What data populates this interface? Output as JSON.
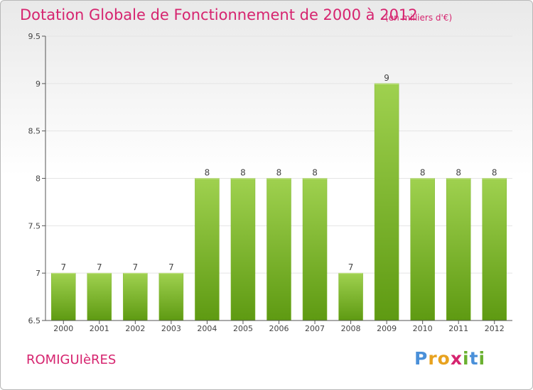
{
  "title": "Dotation Globale de Fonctionnement de 2000 à 2012",
  "subtitle": "(en milliers d'€)",
  "commune": "ROMIGUIèRES",
  "logo": {
    "text": "Proxiti",
    "letters": [
      "P",
      "r",
      "o",
      "x",
      "i",
      "t",
      "i"
    ]
  },
  "colors": {
    "title": "#d6246f",
    "bar_light": "#9fd14f",
    "bar_dark": "#5e9a12",
    "axis": "#555555",
    "grid": "#e4e4e4"
  },
  "chart_data": {
    "type": "bar",
    "categories": [
      "2000",
      "2001",
      "2002",
      "2003",
      "2004",
      "2005",
      "2006",
      "2007",
      "2008",
      "2009",
      "2010",
      "2011",
      "2012"
    ],
    "values": [
      7,
      7,
      7,
      7,
      8,
      8,
      8,
      8,
      7,
      9,
      8,
      8,
      8
    ],
    "value_labels": [
      "7",
      "7",
      "7",
      "7",
      "8",
      "8",
      "8",
      "8",
      "7",
      "9",
      "8",
      "8",
      "8"
    ],
    "title": "Dotation Globale de Fonctionnement de 2000 à 2012",
    "subtitle": "(en milliers d'€)",
    "xlabel": "",
    "ylabel": "",
    "ylim": [
      6.5,
      9.5
    ],
    "yticks": [
      6.5,
      7,
      7.5,
      8,
      8.5,
      9,
      9.5
    ],
    "ytick_labels": [
      "6.5",
      "7",
      "7.5",
      "8",
      "8.5",
      "9",
      "9.5"
    ],
    "grid": true,
    "legend": "none"
  }
}
